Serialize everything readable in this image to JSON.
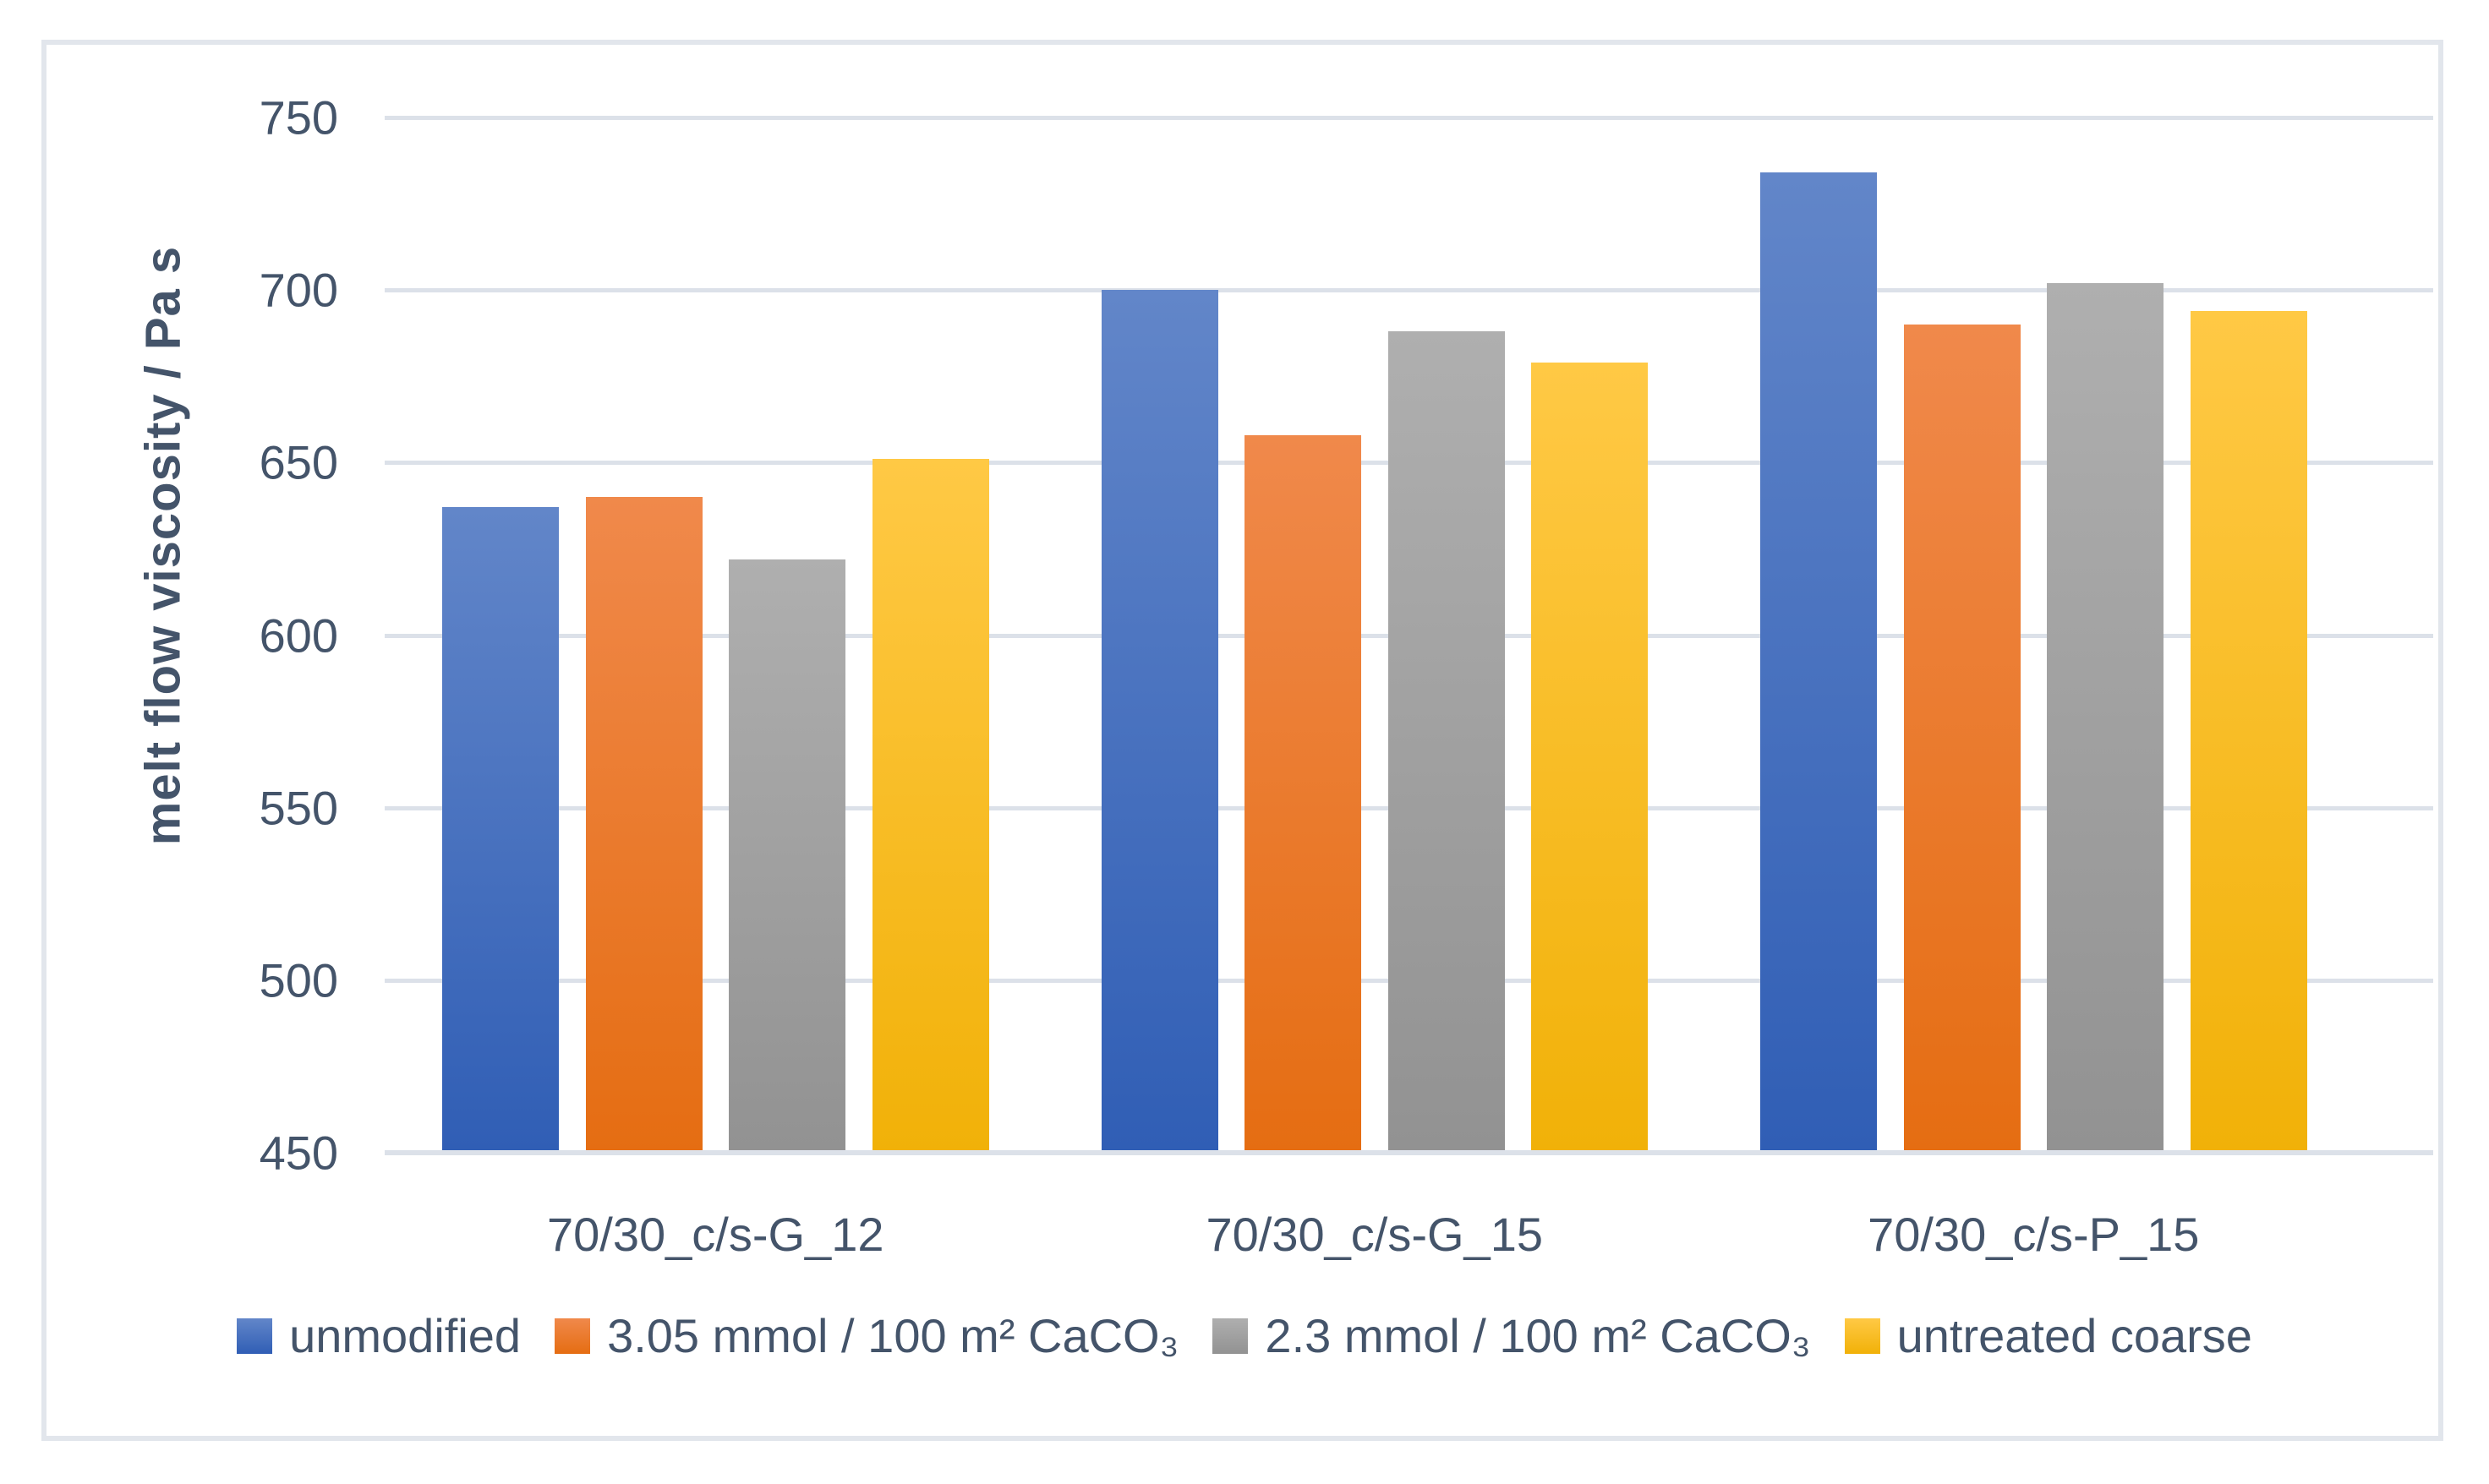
{
  "chart_data": {
    "type": "bar",
    "title": "",
    "xlabel": "",
    "ylabel": "melt flow viscosity / Pa s",
    "ylim": [
      450,
      757
    ],
    "yticks": [
      750,
      700,
      650,
      600,
      550,
      500,
      450
    ],
    "grid": true,
    "legend_position": "bottom",
    "categories": [
      "70/30_c/s-G_12",
      "70/30_c/s-G_15",
      "70/30_c/s-P_15"
    ],
    "series": [
      {
        "name": "unmodified",
        "color": "#4472C4",
        "gradient_top": "#6286C9",
        "gradient_bottom": "#305EB5",
        "values": [
          637,
          700,
          734
        ]
      },
      {
        "name": "3.05 mmol / 100 m² CaCO₃",
        "color": "#ED7D31",
        "gradient_top": "#F0894B",
        "gradient_bottom": "#E56D12",
        "values": [
          640,
          658,
          690
        ]
      },
      {
        "name": "2.3 mmol / 100 m² CaCO₃",
        "color": "#A5A5A5",
        "gradient_top": "#AFAFAF",
        "gradient_bottom": "#929292",
        "values": [
          622,
          688,
          702
        ]
      },
      {
        "name": "untreated coarse",
        "color": "#FFC000",
        "gradient_top": "#FFC945",
        "gradient_bottom": "#F1B108",
        "values": [
          651,
          679,
          694
        ]
      }
    ]
  },
  "style": {
    "text_color": "#44546A",
    "gridline_color": "#DCE1E9",
    "frame_border_color": "#E2E6EC",
    "background": "#FFFFFF"
  }
}
